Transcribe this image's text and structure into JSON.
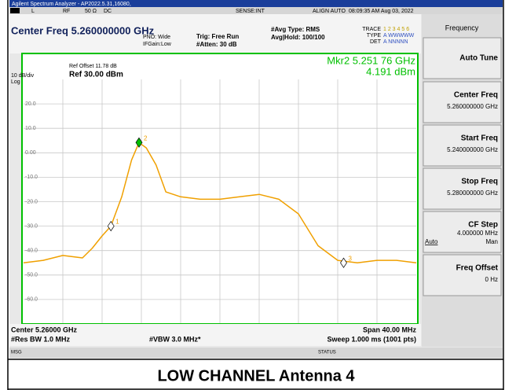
{
  "title_bar": "Agilent Spectrum Analyzer - AP2022.5.31,16080,",
  "status_row": [
    "L",
    "RF",
    "50 Ω",
    "DC",
    "SENSE:INT",
    "ALIGN AUTO",
    "08:09:35 AM Aug 03, 2022"
  ],
  "header": {
    "center_freq": "Center Freq 5.260000000 GHz",
    "pno": "PNO: Wide",
    "ifgain": "IFGain:Low",
    "trig": "Trig: Free Run",
    "atten": "#Atten: 30 dB",
    "avg_type": "#Avg Type: RMS",
    "avg_hold": "Avg|Hold: 100/100",
    "trace_label": "TRACE",
    "type_label": "TYPE",
    "det_label": "DET",
    "trace_nums": "1 2 3 4 5 6",
    "type_val": "A WWWWW",
    "det_val": "A NNNNN"
  },
  "plot": {
    "scale": "10 dB/div",
    "log": "Log",
    "ref_offset": "Ref Offset 11.78 dB",
    "ref": "Ref 30.00 dBm",
    "mkr_freq": "Mkr2 5.251 76 GHz",
    "mkr_val": "4.191 dBm"
  },
  "footer": {
    "center": "Center 5.26000 GHz",
    "res_bw": "#Res BW 1.0 MHz",
    "vbw": "#VBW 3.0 MHz*",
    "span": "Span 40.00 MHz",
    "sweep": "Sweep  1.000 ms (1001 pts)"
  },
  "msg": "MSG",
  "status": "STATUS",
  "softkeys": {
    "title": "Frequency",
    "keys": [
      {
        "label": "Auto Tune"
      },
      {
        "label": "Center Freq",
        "value": "5.260000000 GHz"
      },
      {
        "label": "Start Freq",
        "value": "5.240000000 GHz"
      },
      {
        "label": "Stop Freq",
        "value": "5.280000000 GHz"
      },
      {
        "label": "CF Step",
        "value": "4.000000 MHz",
        "left": "Auto",
        "right": "Man"
      },
      {
        "label": "Freq Offset",
        "value": "0 Hz"
      }
    ]
  },
  "caption": "LOW CHANNEL Antenna 4",
  "chart_data": {
    "type": "line",
    "color": "#f0a000",
    "x": [
      5.24,
      5.242,
      5.244,
      5.246,
      5.247,
      5.248,
      5.2489,
      5.25,
      5.251,
      5.25176,
      5.2525,
      5.2535,
      5.2545,
      5.256,
      5.258,
      5.26,
      5.262,
      5.264,
      5.266,
      5.268,
      5.27,
      5.272,
      5.274,
      5.276,
      5.278,
      5.28
    ],
    "values": [
      -45,
      -44,
      -42,
      -43,
      -39,
      -34,
      -30,
      -18,
      -3,
      4.191,
      2,
      -5,
      -16,
      -18,
      -19,
      -19,
      -18,
      -17,
      -19,
      -25,
      -38,
      -44,
      -45,
      -44,
      -44,
      -45
    ],
    "xlim": [
      5.24,
      5.28
    ],
    "ylim": [
      -70,
      30
    ],
    "xticks": [
      5.244,
      5.248,
      5.252,
      5.256,
      5.26,
      5.264,
      5.268,
      5.272,
      5.276
    ],
    "yticks": [
      {
        "value": 20,
        "label": "20.0"
      },
      {
        "value": 10,
        "label": "10.0"
      },
      {
        "value": 0,
        "label": "0.00"
      },
      {
        "value": -10,
        "label": "-10.0"
      },
      {
        "value": -20,
        "label": "-20.0"
      },
      {
        "value": -30,
        "label": "-30.0"
      },
      {
        "value": -40,
        "label": "-40.0"
      },
      {
        "value": -50,
        "label": "-50.0"
      },
      {
        "value": -60,
        "label": "-60.0"
      }
    ],
    "grid": true,
    "markers": [
      {
        "label": "1",
        "x": 5.2489,
        "y": -30,
        "color": "#ffffff"
      },
      {
        "label": "2",
        "x": 5.25176,
        "y": 4.191,
        "color": "#00c000"
      },
      {
        "label": "3",
        "x": 5.2726,
        "y": -45,
        "color": "#ffffff"
      }
    ]
  }
}
